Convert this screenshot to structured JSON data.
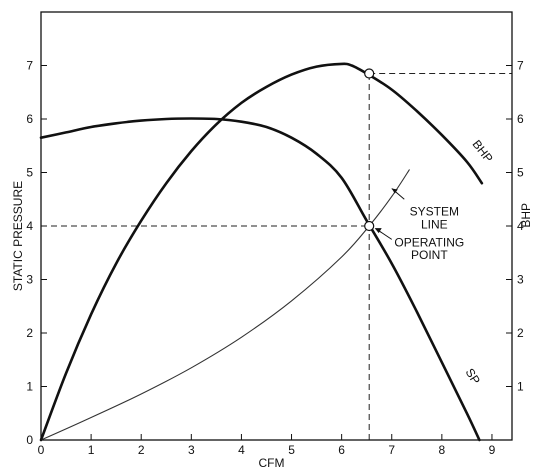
{
  "chart_data": {
    "type": "line",
    "xlabel": "CFM",
    "ylabel_left": "STATIC PRESSURE",
    "ylabel_right": "BHP",
    "xlim": [
      0,
      9.4
    ],
    "ylim": [
      0,
      8
    ],
    "x_ticks": [
      "0",
      "1",
      "2",
      "3",
      "4",
      "5",
      "6",
      "7",
      "8",
      "9"
    ],
    "y_ticks_left": [
      "0",
      "1",
      "2",
      "3",
      "4",
      "5",
      "6",
      "7"
    ],
    "y_ticks_right": [
      "1",
      "2",
      "3",
      "4",
      "5",
      "6",
      "7"
    ],
    "grid": false,
    "series": [
      {
        "name": "SP",
        "color": "#111111",
        "weight": "heavy",
        "x": [
          0,
          0.5,
          1,
          1.5,
          2,
          2.5,
          3,
          3.5,
          4,
          4.5,
          5,
          5.5,
          6,
          6.5,
          7,
          7.5,
          8,
          8.5,
          8.75
        ],
        "y": [
          5.65,
          5.75,
          5.85,
          5.92,
          5.97,
          6.0,
          6.01,
          6.0,
          5.95,
          5.85,
          5.65,
          5.35,
          4.9,
          4.1,
          3.3,
          2.4,
          1.45,
          0.5,
          0.0
        ]
      },
      {
        "name": "BHP",
        "color": "#111111",
        "weight": "heavy",
        "x": [
          0,
          0.5,
          1,
          1.5,
          2,
          2.5,
          3,
          3.5,
          4,
          4.5,
          5,
          5.5,
          6,
          6.2,
          6.5,
          7,
          7.5,
          8,
          8.5,
          8.8
        ],
        "y": [
          0.0,
          1.25,
          2.35,
          3.3,
          4.1,
          4.8,
          5.4,
          5.9,
          6.3,
          6.6,
          6.83,
          6.98,
          7.03,
          7.0,
          6.85,
          6.55,
          6.15,
          5.7,
          5.2,
          4.8
        ]
      },
      {
        "name": "SYSTEM LINE",
        "color": "#333333",
        "weight": "thin",
        "x": [
          0,
          1,
          2,
          3,
          4,
          5,
          6,
          6.55,
          7,
          7.35
        ],
        "y": [
          0.0,
          0.42,
          0.86,
          1.35,
          1.92,
          2.6,
          3.42,
          4.0,
          4.55,
          5.05
        ]
      }
    ],
    "reference_lines": [
      {
        "from": [
          0,
          4.0
        ],
        "to": [
          6.55,
          4.0
        ]
      },
      {
        "from": [
          6.55,
          0
        ],
        "to": [
          6.55,
          6.85
        ]
      },
      {
        "from": [
          6.55,
          6.85
        ],
        "to": [
          9.4,
          6.85
        ]
      }
    ],
    "markers": [
      {
        "x": 6.55,
        "y": 4.0
      },
      {
        "x": 6.55,
        "y": 6.85
      }
    ],
    "labels": {
      "sp": "SP",
      "bhp": "BHP",
      "system_line": [
        "SYSTEM",
        "LINE"
      ],
      "operating_point": [
        "OPERATING",
        "POINT"
      ]
    }
  }
}
